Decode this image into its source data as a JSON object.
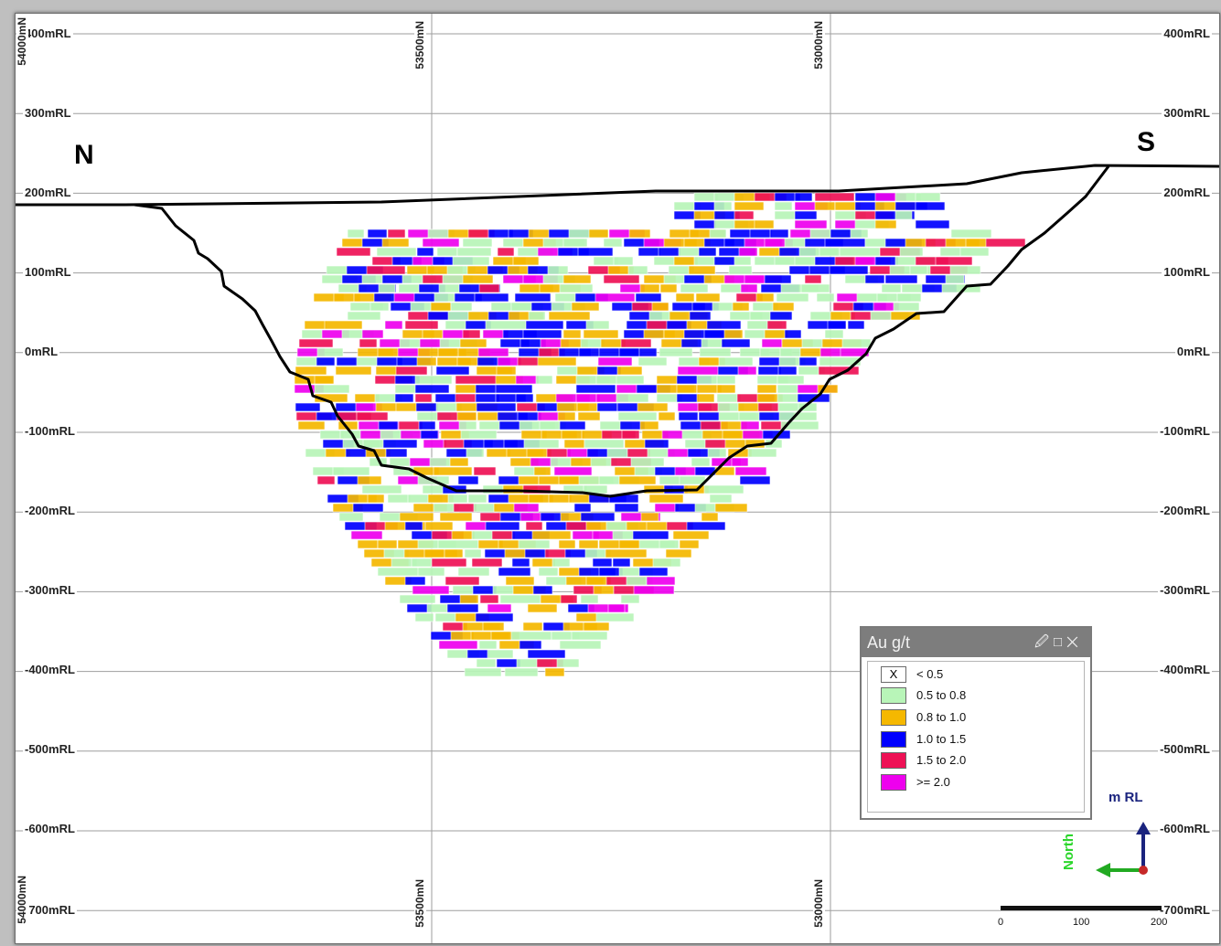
{
  "view": {
    "rl_labels": [
      "400mRL",
      "300mRL",
      "200mRL",
      "100mRL",
      "0mRL",
      "-100mRL",
      "-200mRL",
      "-300mRL",
      "-400mRL",
      "-500mRL",
      "-600mRL",
      "-700mRL"
    ],
    "northing_labels": [
      "54000mN",
      "53500mN",
      "53000mN"
    ],
    "direction_left": "N",
    "direction_right": "S"
  },
  "legend": {
    "title": "Au g/t",
    "controls": {
      "pin": "pin-icon",
      "maximize": "maximize-icon",
      "close": "close-icon"
    },
    "items": [
      {
        "label": "< 0.5",
        "color": "#ffffff",
        "mark": "X"
      },
      {
        "label": "0.5 to 0.8",
        "color": "#b8f5b8"
      },
      {
        "label": "0.8 to 1.0",
        "color": "#f5b800"
      },
      {
        "label": "1.0 to 1.5",
        "color": "#0000ff"
      },
      {
        "label": "1.5 to 2.0",
        "color": "#ee1155"
      },
      {
        "label": ">= 2.0",
        "color": "#ee00ee"
      }
    ]
  },
  "orientation": {
    "up_label": "m RL",
    "left_label": "North"
  },
  "scale_bar": {
    "ticks": [
      "0",
      "100",
      "200"
    ]
  },
  "colors": {
    "pit_outline": "#000000",
    "grid": "#9e9e9e"
  }
}
